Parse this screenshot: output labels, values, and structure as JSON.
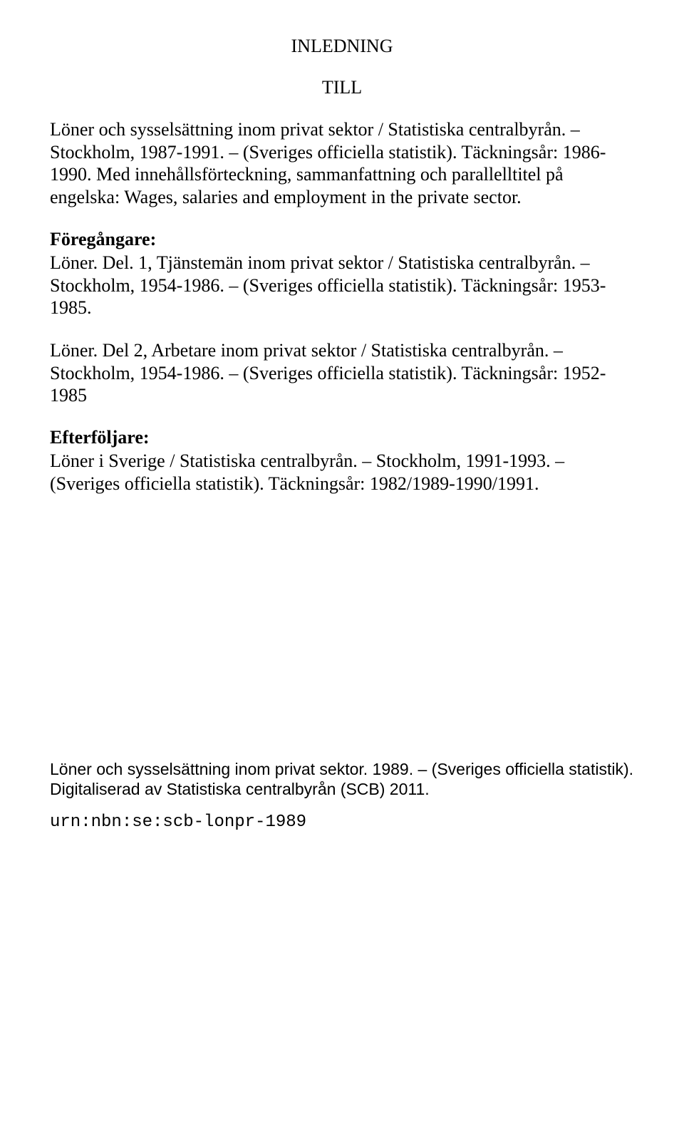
{
  "title": "INLEDNING",
  "subtitle": "TILL",
  "main_para": "Löner och sysselsättning inom privat sektor / Statistiska centralbyrån. – Stockholm, 1987-1991. – (Sveriges officiella statistik). Täckningsår: 1986-1990. Med innehållsförteckning, sammanfattning och parallelltitel på engelska: Wages, salaries and employment in the private sector.",
  "foregangare_heading": "Föregångare:",
  "foregangare_para1": "Löner. Del. 1, Tjänstemän inom privat sektor / Statistiska centralbyrån. – Stockholm, 1954-1986. – (Sveriges officiella statistik). Täckningsår: 1953-1985.",
  "foregangare_para2": "Löner. Del 2, Arbetare inom privat sektor / Statistiska centralbyrån. – Stockholm, 1954-1986. – (Sveriges officiella statistik). Täckningsår: 1952-1985",
  "efterfoljare_heading": "Efterföljare:",
  "efterfoljare_para": "Löner i Sverige / Statistiska centralbyrån. – Stockholm, 1991-1993. – (Sveriges officiella statistik). Täckningsår: 1982/1989-1990/1991.",
  "bottom_sans": "Löner och sysselsättning inom privat sektor. 1989. – (Sveriges officiella statistik). Digitaliserad av Statistiska centralbyrån (SCB) 2011.",
  "urn": "urn:nbn:se:scb-lonpr-1989",
  "colors": {
    "background": "#ffffff",
    "text": "#000000"
  }
}
